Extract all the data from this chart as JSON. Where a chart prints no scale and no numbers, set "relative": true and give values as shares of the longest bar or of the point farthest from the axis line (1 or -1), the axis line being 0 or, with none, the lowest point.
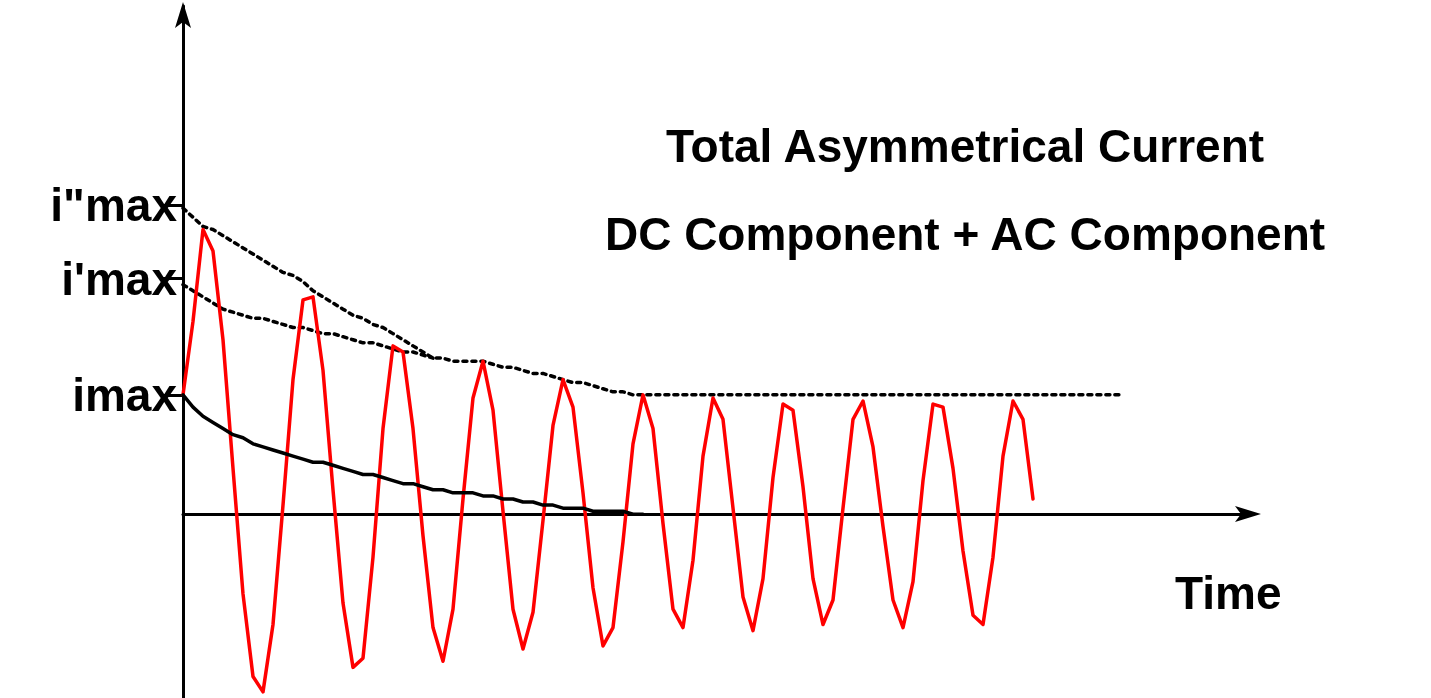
{
  "chart_data": {
    "type": "line",
    "title": "Total Asymmetrical Current",
    "subtitle": "DC Component + AC Component",
    "xlabel": "Time",
    "tick_labels": "y",
    "relative": true,
    "categories": [
      null,
      null,
      null,
      null,
      null,
      null,
      null,
      null,
      null,
      null,
      null,
      null,
      null,
      null,
      null,
      null,
      null,
      null,
      null,
      null,
      null,
      null,
      null,
      null,
      null,
      null,
      null,
      null,
      null,
      null,
      null,
      null,
      null,
      null,
      null,
      null,
      null,
      null,
      null,
      null,
      null,
      null,
      null,
      null,
      null,
      null,
      null,
      null,
      null,
      null,
      null,
      null,
      null,
      null,
      null,
      null,
      null,
      null,
      null,
      null,
      null,
      null,
      null,
      null,
      null,
      null,
      null,
      null,
      null,
      null,
      null,
      null,
      null,
      null,
      null,
      null,
      null,
      null,
      null,
      null,
      null,
      null,
      null,
      null,
      null,
      null,
      null,
      null,
      null,
      null,
      null,
      null,
      null,
      null,
      null,
      null,
      null,
      null,
      null,
      null,
      null,
      null,
      null,
      null,
      null,
      null,
      null
    ],
    "ylim": [
      -0.6,
      1.66
    ],
    "ref_lines": [
      {
        "axis": "y",
        "value": 1.01,
        "label": "i\"max"
      },
      {
        "axis": "y",
        "value": 0.77,
        "label": "i'max"
      },
      {
        "axis": "y",
        "value": 0.39,
        "label": "imax"
      }
    ],
    "series": [
      {
        "color": "#ff0000",
        "line_style": "solid",
        "values": [
          0.39,
          0.63,
          0.93,
          0.86,
          0.57,
          0.15,
          -0.26,
          -0.53,
          -0.58,
          -0.36,
          0.03,
          0.44,
          0.7,
          0.71,
          0.47,
          0.08,
          -0.29,
          -0.5,
          -0.47,
          -0.14,
          0.28,
          0.55,
          0.53,
          0.28,
          -0.07,
          -0.37,
          -0.48,
          -0.31,
          0.05,
          0.38,
          0.5,
          0.34,
          0.01,
          -0.31,
          -0.44,
          -0.32,
          -0.02,
          0.29,
          0.44,
          0.35,
          0.07,
          -0.24,
          -0.43,
          -0.37,
          -0.09,
          0.23,
          0.39,
          0.28,
          -0.03,
          -0.31,
          -0.37,
          -0.15,
          0.19,
          0.38,
          0.31,
          0.02,
          -0.27,
          -0.38,
          -0.21,
          0.12,
          0.36,
          0.34,
          0.09,
          -0.21,
          -0.36,
          -0.28,
          0.02,
          0.31,
          0.37,
          0.22,
          -0.04,
          -0.28,
          -0.37,
          -0.22,
          0.11,
          0.36,
          0.35,
          0.15,
          -0.12,
          -0.33,
          -0.36,
          -0.14,
          0.19,
          0.37,
          0.31,
          0.05,
          null,
          null,
          null,
          null,
          null,
          null,
          null,
          null,
          null,
          null,
          null,
          null,
          null,
          null,
          null,
          null,
          null,
          null,
          null,
          null,
          null
        ]
      },
      {
        "color": "#000000",
        "line_style": "solid",
        "values": [
          0.39,
          0.35,
          0.32,
          0.3,
          0.28,
          0.26,
          0.25,
          0.23,
          0.22,
          0.21,
          0.2,
          0.19,
          0.18,
          0.17,
          0.17,
          0.16,
          0.15,
          0.14,
          0.13,
          0.13,
          0.12,
          0.11,
          0.1,
          0.1,
          0.09,
          0.08,
          0.08,
          0.07,
          0.07,
          0.07,
          0.06,
          0.06,
          0.05,
          0.05,
          0.04,
          0.04,
          0.03,
          0.03,
          0.02,
          0.02,
          0.02,
          0.01,
          0.01,
          0.01,
          0.01,
          0,
          0,
          null,
          null,
          null,
          null,
          null,
          null,
          null,
          null,
          null,
          null,
          null,
          null,
          null,
          null,
          null,
          null,
          null,
          null,
          null,
          null,
          null,
          null,
          null,
          null,
          null,
          null,
          null,
          null,
          null,
          null,
          null,
          null,
          null,
          null,
          null,
          null,
          null,
          null,
          null,
          null,
          null,
          null,
          null,
          null,
          null,
          null,
          null,
          null,
          null,
          null,
          null,
          null,
          null,
          null,
          null,
          null,
          null,
          null,
          null,
          null
        ]
      },
      {
        "color": "#000000",
        "line_style": "dotted",
        "values": [
          1.0,
          0.97,
          0.94,
          0.93,
          0.91,
          0.89,
          0.87,
          0.85,
          0.83,
          0.81,
          0.79,
          0.78,
          0.76,
          0.73,
          0.71,
          0.69,
          0.67,
          0.65,
          0.64,
          0.62,
          0.61,
          0.59,
          0.57,
          0.55,
          0.53,
          0.51,
          0.51,
          0.5,
          0.5,
          0.5,
          0.5,
          0.49,
          0.48,
          0.48,
          0.47,
          0.46,
          0.46,
          0.45,
          0.44,
          0.43,
          0.43,
          0.42,
          0.41,
          0.4,
          0.4,
          0.39,
          0.39,
          0.39,
          0.39,
          0.39,
          0.39,
          0.39,
          0.39,
          0.39,
          0.39,
          0.39,
          0.39,
          0.39,
          0.39,
          0.39,
          0.39,
          0.39,
          0.39,
          0.39,
          0.39,
          0.39,
          0.39,
          0.39,
          0.39,
          0.39,
          0.39,
          0.39,
          0.39,
          0.39,
          0.39,
          0.39,
          0.39,
          0.39,
          0.39,
          0.39,
          0.39,
          0.39,
          0.39,
          0.39,
          0.39,
          0.39,
          0.39,
          0.39,
          0.39,
          0.39,
          0.39,
          0.39,
          0.39,
          0.39,
          0.39,
          null,
          null,
          null,
          null,
          null,
          null,
          null,
          null,
          null,
          null,
          null,
          null
        ]
      },
      {
        "color": "#000000",
        "line_style": "dotted",
        "values": [
          0.75,
          0.73,
          0.71,
          0.69,
          0.67,
          0.66,
          0.65,
          0.64,
          0.64,
          0.63,
          0.62,
          0.61,
          0.61,
          0.6,
          0.59,
          0.59,
          0.58,
          0.57,
          0.56,
          0.56,
          0.55,
          0.54,
          0.53,
          0.53,
          0.52,
          0.51,
          null,
          null,
          null,
          null,
          null,
          null,
          null,
          null,
          null,
          null,
          null,
          null,
          null,
          null,
          null,
          null,
          null,
          null,
          null,
          null,
          null,
          null,
          null,
          null,
          null,
          null,
          null,
          null,
          null,
          null,
          null,
          null,
          null,
          null,
          null,
          null,
          null,
          null,
          null,
          null,
          null,
          null,
          null,
          null,
          null,
          null,
          null,
          null,
          null,
          null,
          null,
          null,
          null,
          null,
          null,
          null,
          null,
          null,
          null,
          null,
          null,
          null,
          null,
          null,
          null,
          null,
          null,
          null,
          null,
          null,
          null,
          null,
          null,
          null,
          null,
          null,
          null,
          null,
          null,
          null,
          null
        ]
      }
    ]
  }
}
